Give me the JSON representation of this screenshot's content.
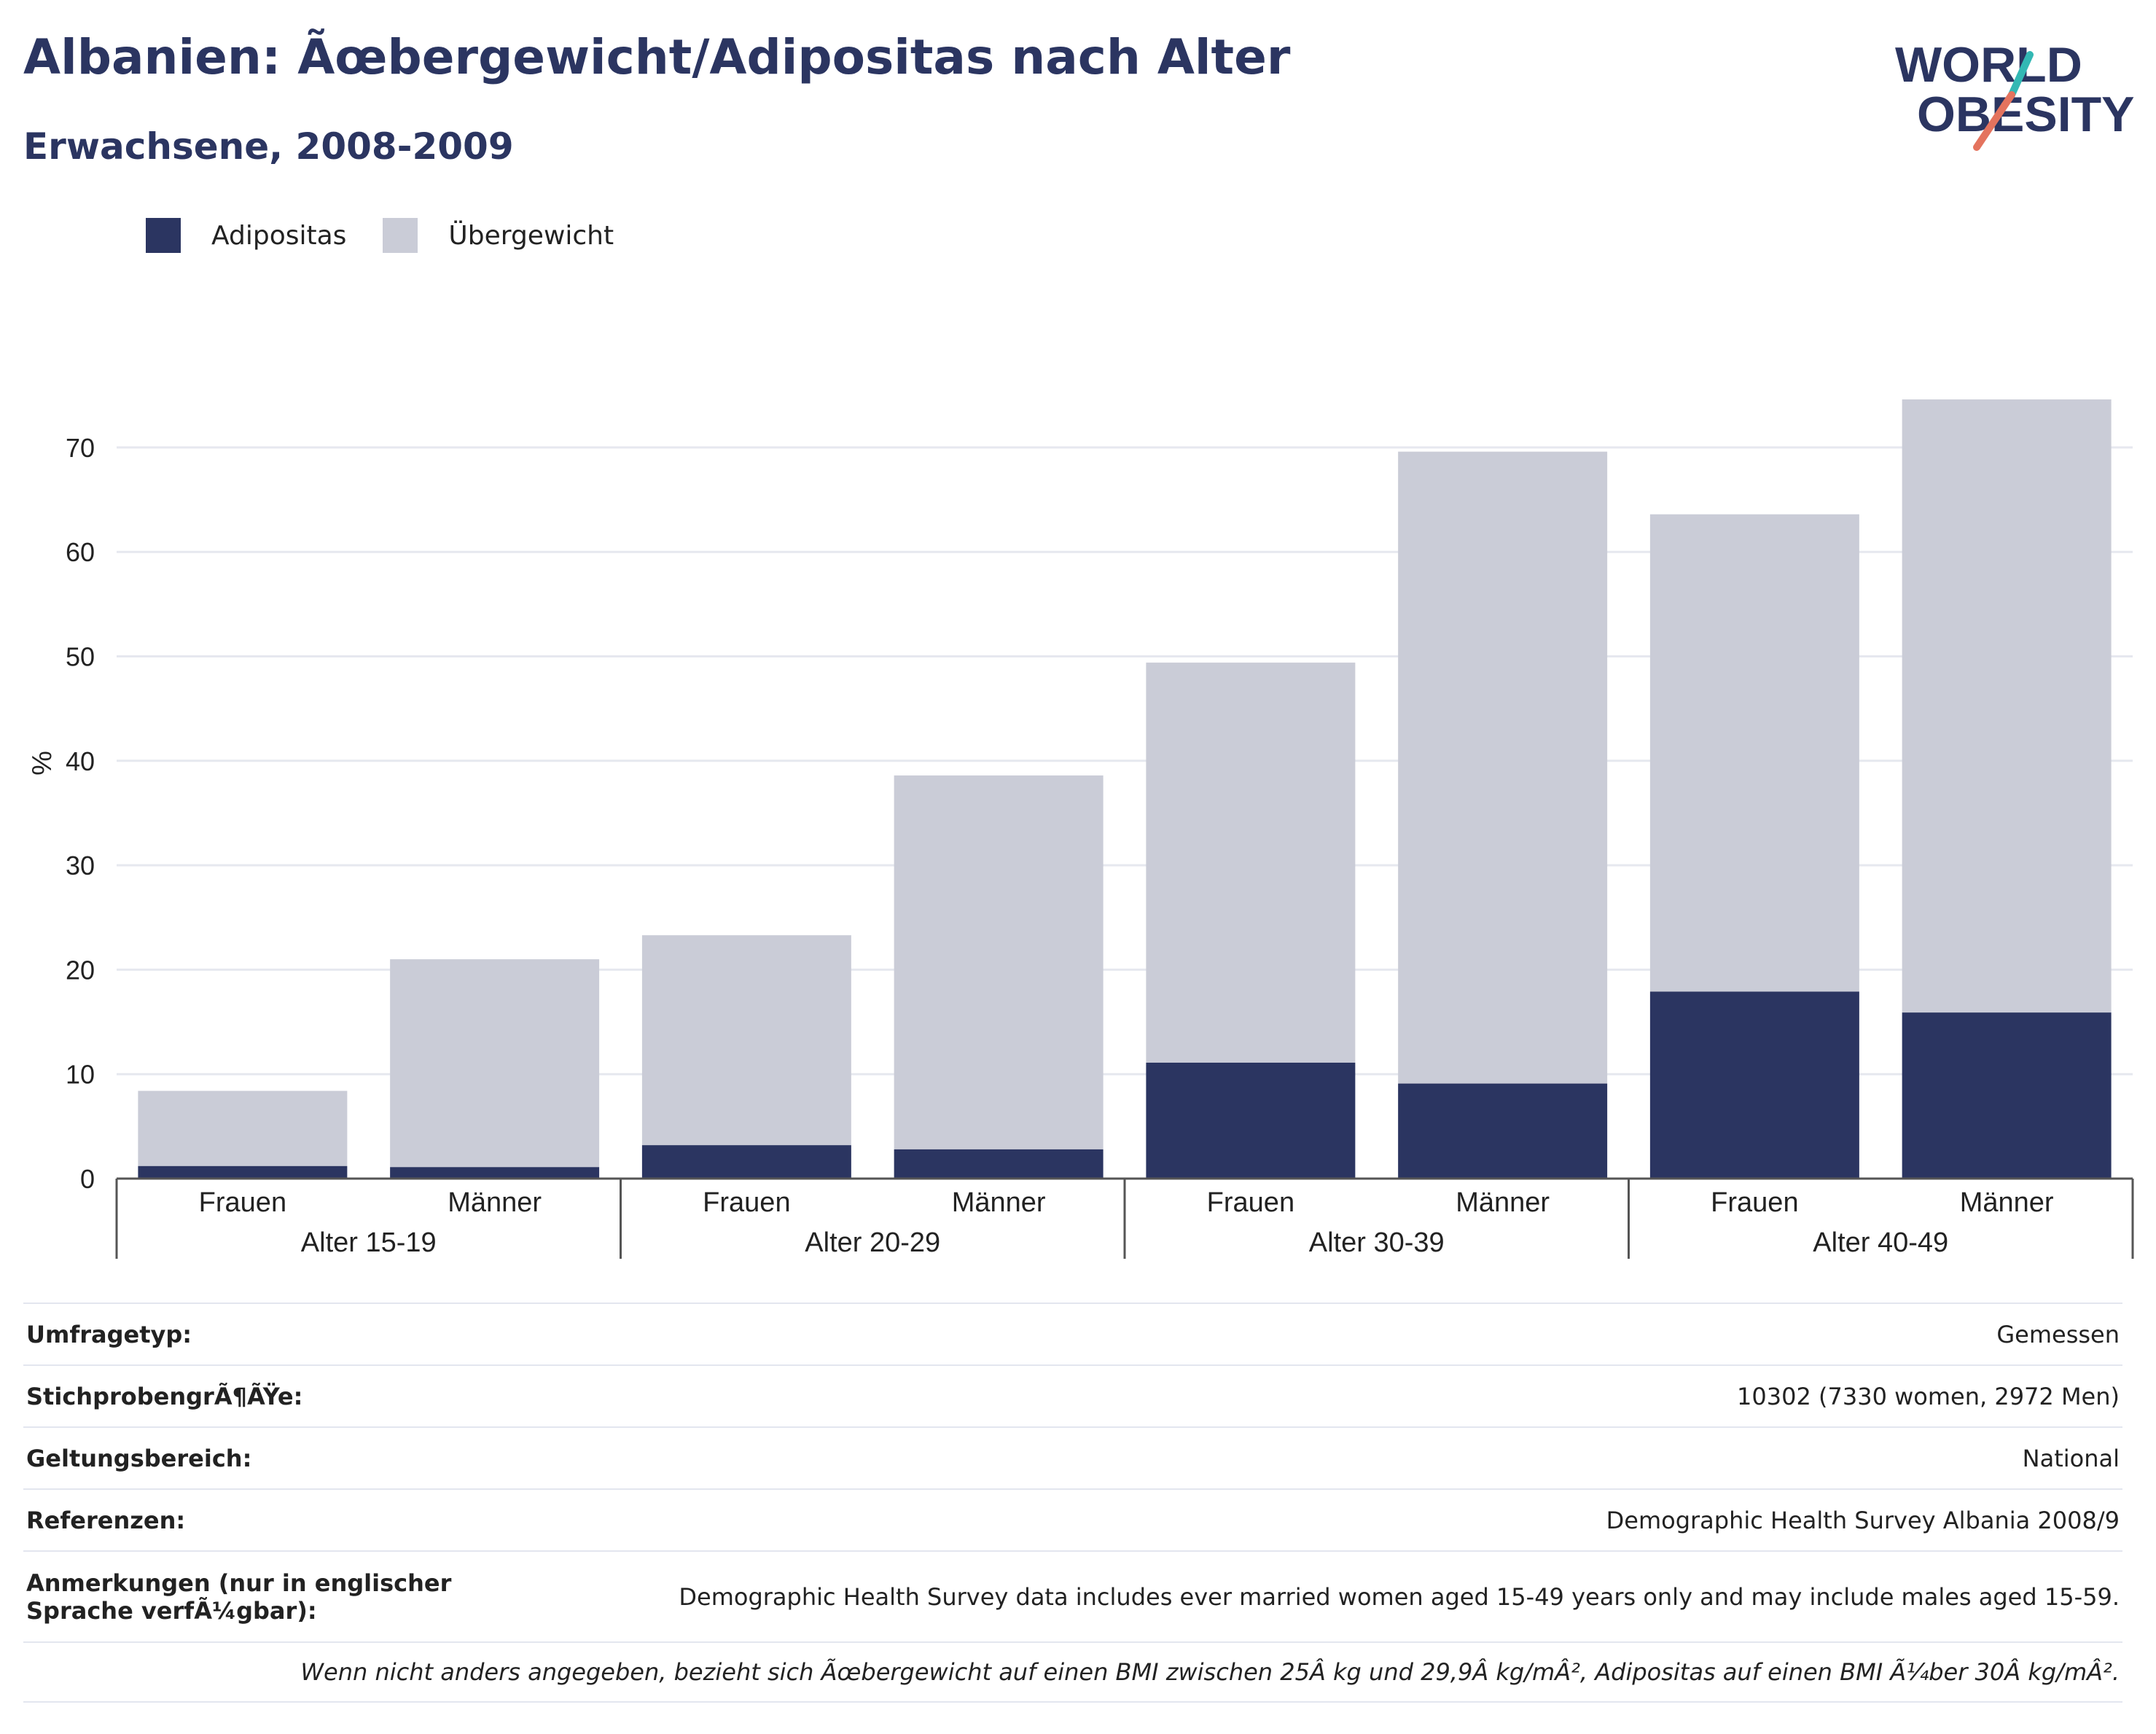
{
  "header": {
    "title": "Albanien: Ãœbergewicht/Adipositas nach Alter",
    "subtitle": "Erwachsene, 2008-2009"
  },
  "logo": {
    "line1": "WORLD",
    "line2": "OBESITY"
  },
  "colors": {
    "obesity": "#2b3561",
    "overweight": "#caccd7",
    "title": "#2b3561",
    "logo_teal": "#33b8b4",
    "logo_coral": "#e4735e"
  },
  "legend": [
    {
      "label": "Adipositas",
      "color": "#2b3561"
    },
    {
      "label": "Übergewicht",
      "color": "#caccd7"
    }
  ],
  "chart_data": {
    "type": "bar",
    "stacked": true,
    "ylabel": "%",
    "ylim": [
      0,
      75
    ],
    "yticks": [
      0,
      10,
      20,
      30,
      40,
      50,
      60,
      70
    ],
    "grid": true,
    "legend_position": "top-left",
    "groups": [
      "Alter 15-19",
      "Alter 20-29",
      "Alter 30-39",
      "Alter 40-49"
    ],
    "subcategories": [
      "Frauen",
      "Männer"
    ],
    "categories": [
      "Frauen",
      "Männer",
      "Frauen",
      "Männer",
      "Frauen",
      "Männer",
      "Frauen",
      "Männer"
    ],
    "series": [
      {
        "name": "Adipositas",
        "values": [
          1.2,
          1.1,
          3.2,
          2.8,
          11.1,
          9.1,
          17.9,
          15.9
        ]
      },
      {
        "name": "Übergewicht",
        "values": [
          7.2,
          19.9,
          20.1,
          35.8,
          38.3,
          60.5,
          45.7,
          58.7
        ]
      }
    ]
  },
  "meta": {
    "rows": [
      {
        "label": "Umfragetyp:",
        "value": "Gemessen"
      },
      {
        "label": "StichprobengrÃ¶ÃŸe:",
        "value": "10302 (7330 women, 2972 Men)"
      },
      {
        "label": "Geltungsbereich:",
        "value": "National"
      },
      {
        "label": "Referenzen:",
        "value": "Demographic Health Survey Albania 2008/9"
      },
      {
        "label": "Anmerkungen (nur in englischer Sprache verfÃ¼gbar):",
        "value": "Demographic Health Survey data includes ever married women aged 15-49 years only and may include males aged 15-59."
      }
    ],
    "note": "Wenn nicht anders angegeben, bezieht sich Ãœbergewicht auf einen BMI zwischen 25Â kg und 29,9Â kg/mÂ², Adipositas auf einen BMI Ã¼ber 30Â kg/mÂ²."
  }
}
